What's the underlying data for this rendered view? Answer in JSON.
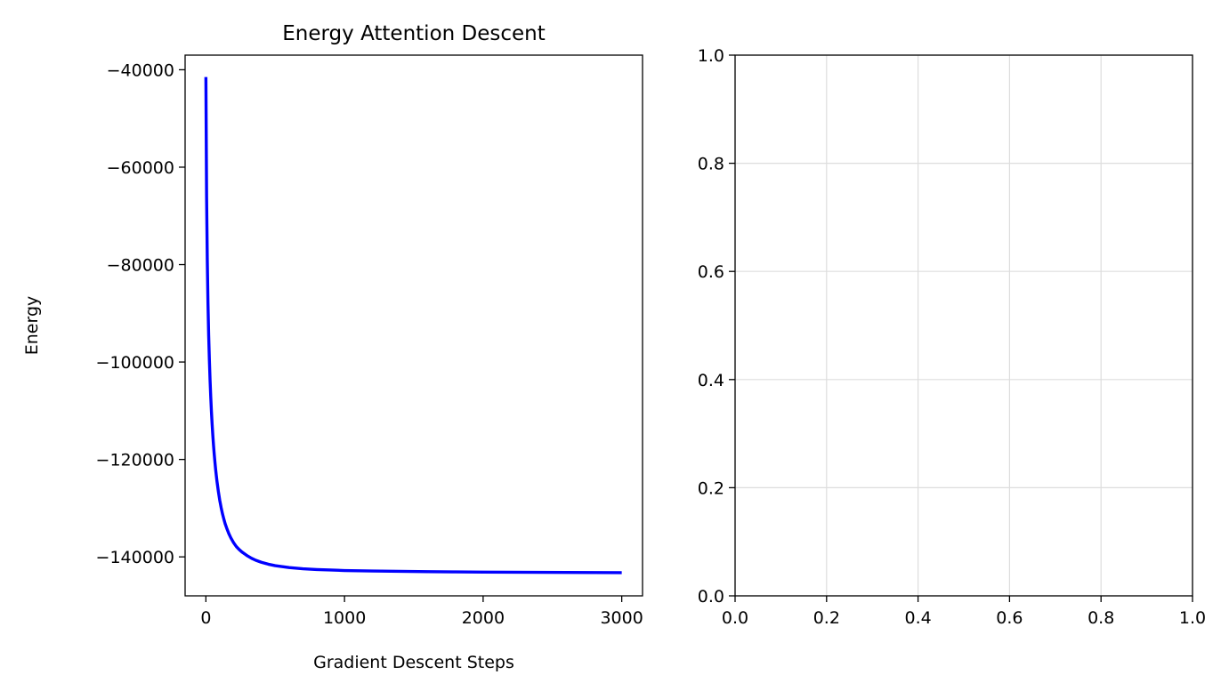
{
  "chart_data": [
    {
      "type": "line",
      "title": "Energy Attention Descent",
      "xlabel": "Gradient Descent Steps",
      "ylabel": "Energy",
      "xlim": [
        -150,
        3150
      ],
      "ylim": [
        -148000,
        -37000
      ],
      "xticks": [
        0,
        1000,
        2000,
        3000
      ],
      "xtick_labels": [
        "0",
        "1000",
        "2000",
        "3000"
      ],
      "yticks": [
        -40000,
        -60000,
        -80000,
        -100000,
        -120000,
        -140000
      ],
      "ytick_labels": [
        "−40000",
        "−60000",
        "−80000",
        "−100000",
        "−120000",
        "−140000"
      ],
      "grid": false,
      "series": [
        {
          "color": "#0000ff",
          "x": [
            0,
            5,
            10,
            15,
            20,
            25,
            30,
            35,
            40,
            45,
            50,
            55,
            60,
            65,
            70,
            75,
            80,
            90,
            100,
            110,
            120,
            130,
            140,
            150,
            165,
            180,
            200,
            220,
            240,
            260,
            280,
            300,
            330,
            360,
            400,
            450,
            500,
            600,
            700,
            800,
            900,
            1000,
            1200,
            1400,
            1600,
            1800,
            2000,
            2200,
            2400,
            2600,
            2800,
            3000
          ],
          "y": [
            -41500,
            -66000,
            -79000,
            -88000,
            -94500,
            -99500,
            -103700,
            -107200,
            -110200,
            -112800,
            -115100,
            -117100,
            -118900,
            -120500,
            -122000,
            -123300,
            -124500,
            -126600,
            -128400,
            -129900,
            -131200,
            -132300,
            -133300,
            -134100,
            -135200,
            -136100,
            -137100,
            -137900,
            -138500,
            -139000,
            -139400,
            -139800,
            -140300,
            -140700,
            -141100,
            -141500,
            -141800,
            -142200,
            -142450,
            -142600,
            -142700,
            -142800,
            -142900,
            -142970,
            -143030,
            -143080,
            -143120,
            -143150,
            -143180,
            -143200,
            -143220,
            -143240
          ]
        }
      ]
    },
    {
      "type": "line",
      "title": "",
      "xlabel": "",
      "ylabel": "",
      "xlim": [
        0,
        1
      ],
      "ylim": [
        0,
        1
      ],
      "xticks": [
        0,
        0.2,
        0.4,
        0.6,
        0.8,
        1.0
      ],
      "xtick_labels": [
        "0.0",
        "0.2",
        "0.4",
        "0.6",
        "0.8",
        "1.0"
      ],
      "yticks": [
        0,
        0.2,
        0.4,
        0.6,
        0.8,
        1.0
      ],
      "ytick_labels": [
        "0.0",
        "0.2",
        "0.4",
        "0.6",
        "0.8",
        "1.0"
      ],
      "grid": true,
      "series": []
    }
  ]
}
